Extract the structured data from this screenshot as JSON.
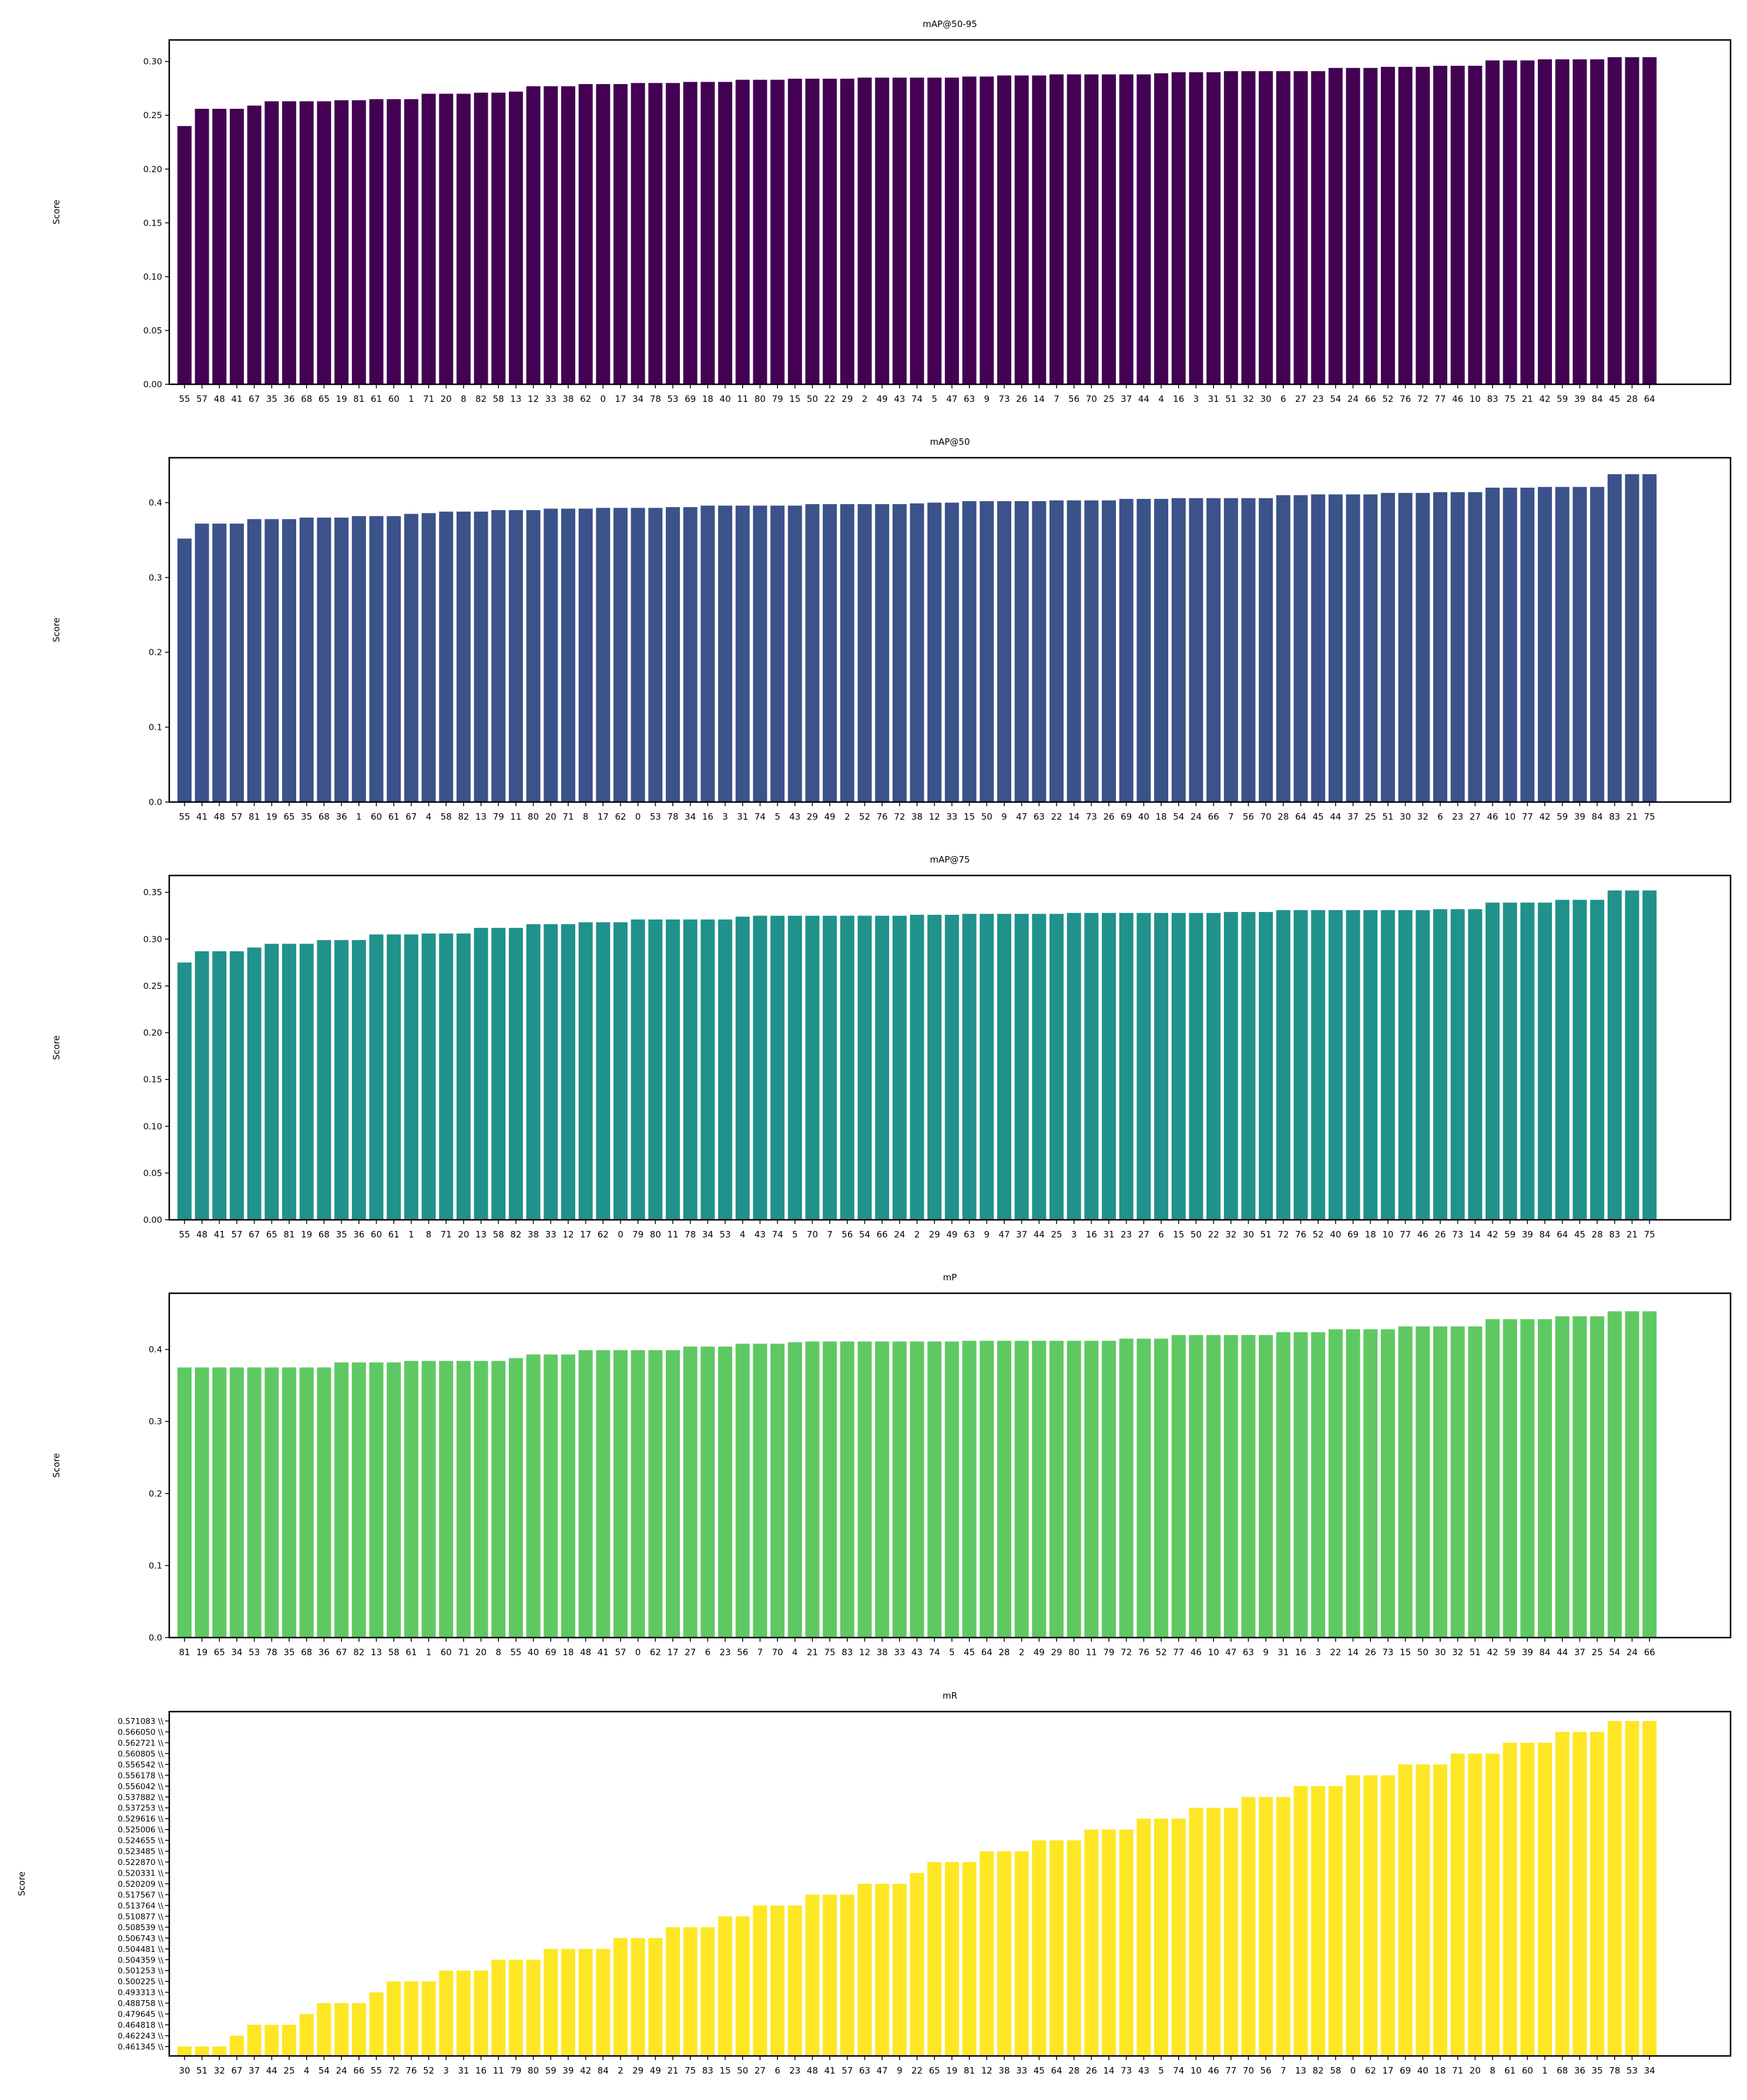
{
  "chart_data": [
    {
      "type": "bar",
      "title": "mAP@50-95",
      "xlabel": "",
      "ylabel": "Score",
      "color": "#440154",
      "ylim": [
        0,
        0.32
      ],
      "yticks": [
        0.0,
        0.05,
        0.1,
        0.15,
        0.2,
        0.25,
        0.3
      ],
      "tick_decimals": 2,
      "categories": [
        "55",
        "57",
        "48",
        "41",
        "67",
        "35",
        "36",
        "68",
        "65",
        "19",
        "81",
        "61",
        "60",
        "1",
        "71",
        "20",
        "8",
        "82",
        "58",
        "13",
        "12",
        "33",
        "38",
        "62",
        "0",
        "17",
        "34",
        "78",
        "53",
        "69",
        "18",
        "40",
        "11",
        "80",
        "79",
        "15",
        "50",
        "22",
        "29",
        "2",
        "49",
        "43",
        "74",
        "5",
        "47",
        "63",
        "9",
        "73",
        "26",
        "14",
        "7",
        "56",
        "70",
        "25",
        "37",
        "44",
        "4",
        "16",
        "3",
        "31",
        "51",
        "32",
        "30",
        "6",
        "27",
        "23",
        "54",
        "24",
        "66",
        "52",
        "76",
        "72",
        "77",
        "46",
        "10",
        "83",
        "75",
        "21",
        "42",
        "59",
        "39",
        "84",
        "45",
        "28",
        "64"
      ],
      "values": [
        0.24,
        0.256,
        0.256,
        0.256,
        0.259,
        0.263,
        0.263,
        0.263,
        0.263,
        0.264,
        0.264,
        0.265,
        0.265,
        0.265,
        0.27,
        0.27,
        0.27,
        0.271,
        0.271,
        0.272,
        0.277,
        0.277,
        0.277,
        0.279,
        0.279,
        0.279,
        0.28,
        0.28,
        0.28,
        0.281,
        0.281,
        0.281,
        0.283,
        0.283,
        0.283,
        0.284,
        0.284,
        0.284,
        0.284,
        0.285,
        0.285,
        0.285,
        0.285,
        0.285,
        0.285,
        0.286,
        0.286,
        0.287,
        0.287,
        0.287,
        0.288,
        0.288,
        0.288,
        0.288,
        0.288,
        0.288,
        0.289,
        0.29,
        0.29,
        0.29,
        0.291,
        0.291,
        0.291,
        0.291,
        0.291,
        0.291,
        0.294,
        0.294,
        0.294,
        0.295,
        0.295,
        0.295,
        0.296,
        0.296,
        0.296,
        0.301,
        0.301,
        0.301,
        0.302,
        0.302,
        0.302,
        0.302,
        0.304,
        0.304,
        0.304
      ]
    },
    {
      "type": "bar",
      "title": "mAP@50",
      "xlabel": "",
      "ylabel": "Score",
      "color": "#3b528b",
      "ylim": [
        0,
        0.46
      ],
      "yticks": [
        0.0,
        0.1,
        0.2,
        0.3,
        0.4
      ],
      "tick_decimals": 1,
      "categories": [
        "55",
        "41",
        "48",
        "57",
        "81",
        "19",
        "65",
        "35",
        "68",
        "36",
        "1",
        "60",
        "61",
        "67",
        "4",
        "58",
        "82",
        "13",
        "79",
        "11",
        "80",
        "20",
        "71",
        "8",
        "17",
        "62",
        "0",
        "53",
        "78",
        "34",
        "16",
        "3",
        "31",
        "74",
        "5",
        "43",
        "29",
        "49",
        "2",
        "52",
        "76",
        "72",
        "38",
        "12",
        "33",
        "15",
        "50",
        "9",
        "47",
        "63",
        "22",
        "14",
        "73",
        "26",
        "69",
        "40",
        "18",
        "54",
        "24",
        "66",
        "7",
        "56",
        "70",
        "28",
        "64",
        "45",
        "44",
        "37",
        "25",
        "51",
        "30",
        "32",
        "6",
        "23",
        "27",
        "46",
        "10",
        "77",
        "42",
        "59",
        "39",
        "84",
        "83",
        "21",
        "75"
      ],
      "values": [
        0.352,
        0.372,
        0.372,
        0.372,
        0.378,
        0.378,
        0.378,
        0.38,
        0.38,
        0.38,
        0.382,
        0.382,
        0.382,
        0.385,
        0.386,
        0.388,
        0.388,
        0.388,
        0.39,
        0.39,
        0.39,
        0.392,
        0.392,
        0.392,
        0.393,
        0.393,
        0.393,
        0.393,
        0.394,
        0.394,
        0.396,
        0.396,
        0.396,
        0.396,
        0.396,
        0.396,
        0.398,
        0.398,
        0.398,
        0.398,
        0.398,
        0.398,
        0.399,
        0.4,
        0.4,
        0.402,
        0.402,
        0.402,
        0.402,
        0.402,
        0.403,
        0.403,
        0.403,
        0.403,
        0.405,
        0.405,
        0.405,
        0.406,
        0.406,
        0.406,
        0.406,
        0.406,
        0.406,
        0.41,
        0.41,
        0.411,
        0.411,
        0.411,
        0.411,
        0.413,
        0.413,
        0.413,
        0.414,
        0.414,
        0.414,
        0.42,
        0.42,
        0.42,
        0.421,
        0.421,
        0.421,
        0.421,
        0.438,
        0.438,
        0.438
      ]
    },
    {
      "type": "bar",
      "title": "mAP@75",
      "xlabel": "",
      "ylabel": "Score",
      "color": "#21918c",
      "ylim": [
        0,
        0.368
      ],
      "yticks": [
        0.0,
        0.05,
        0.1,
        0.15,
        0.2,
        0.25,
        0.3,
        0.35
      ],
      "tick_decimals": 2,
      "categories": [
        "55",
        "48",
        "41",
        "57",
        "67",
        "65",
        "81",
        "19",
        "68",
        "35",
        "36",
        "60",
        "61",
        "1",
        "8",
        "71",
        "20",
        "13",
        "58",
        "82",
        "38",
        "33",
        "12",
        "17",
        "62",
        "0",
        "79",
        "80",
        "11",
        "78",
        "34",
        "53",
        "4",
        "43",
        "74",
        "5",
        "70",
        "7",
        "56",
        "54",
        "66",
        "24",
        "2",
        "29",
        "49",
        "63",
        "9",
        "47",
        "37",
        "44",
        "25",
        "3",
        "16",
        "31",
        "23",
        "27",
        "6",
        "15",
        "50",
        "22",
        "32",
        "30",
        "51",
        "72",
        "76",
        "52",
        "40",
        "69",
        "18",
        "10",
        "77",
        "46",
        "26",
        "73",
        "14",
        "42",
        "59",
        "39",
        "84",
        "64",
        "45",
        "28",
        "83",
        "21",
        "75"
      ],
      "values": [
        0.275,
        0.287,
        0.287,
        0.287,
        0.291,
        0.295,
        0.295,
        0.295,
        0.299,
        0.299,
        0.299,
        0.305,
        0.305,
        0.305,
        0.306,
        0.306,
        0.306,
        0.312,
        0.312,
        0.312,
        0.316,
        0.316,
        0.316,
        0.318,
        0.318,
        0.318,
        0.321,
        0.321,
        0.321,
        0.321,
        0.321,
        0.321,
        0.324,
        0.325,
        0.325,
        0.325,
        0.325,
        0.325,
        0.325,
        0.325,
        0.325,
        0.325,
        0.326,
        0.326,
        0.326,
        0.327,
        0.327,
        0.327,
        0.327,
        0.327,
        0.327,
        0.328,
        0.328,
        0.328,
        0.328,
        0.328,
        0.328,
        0.328,
        0.328,
        0.328,
        0.329,
        0.329,
        0.329,
        0.331,
        0.331,
        0.331,
        0.331,
        0.331,
        0.331,
        0.331,
        0.331,
        0.331,
        0.332,
        0.332,
        0.332,
        0.339,
        0.339,
        0.339,
        0.339,
        0.342,
        0.342,
        0.342,
        0.352,
        0.352,
        0.352
      ]
    },
    {
      "type": "bar",
      "title": "mP",
      "xlabel": "",
      "ylabel": "Score",
      "color": "#5ec962",
      "ylim": [
        0,
        0.478
      ],
      "yticks": [
        0.0,
        0.1,
        0.2,
        0.3,
        0.4
      ],
      "tick_decimals": 1,
      "categories": [
        "81",
        "19",
        "65",
        "34",
        "53",
        "78",
        "35",
        "68",
        "36",
        "67",
        "82",
        "13",
        "58",
        "61",
        "1",
        "60",
        "71",
        "20",
        "8",
        "55",
        "40",
        "69",
        "18",
        "48",
        "41",
        "57",
        "0",
        "62",
        "17",
        "27",
        "6",
        "23",
        "56",
        "7",
        "70",
        "4",
        "21",
        "75",
        "83",
        "12",
        "38",
        "33",
        "43",
        "74",
        "5",
        "45",
        "64",
        "28",
        "2",
        "49",
        "29",
        "80",
        "11",
        "79",
        "72",
        "76",
        "52",
        "77",
        "46",
        "10",
        "47",
        "63",
        "9",
        "31",
        "16",
        "3",
        "22",
        "14",
        "26",
        "73",
        "15",
        "50",
        "30",
        "32",
        "51",
        "42",
        "59",
        "39",
        "84",
        "44",
        "37",
        "25",
        "54",
        "24",
        "66"
      ],
      "values": [
        0.375,
        0.375,
        0.375,
        0.375,
        0.375,
        0.375,
        0.375,
        0.375,
        0.375,
        0.382,
        0.382,
        0.382,
        0.382,
        0.384,
        0.384,
        0.384,
        0.384,
        0.384,
        0.384,
        0.388,
        0.393,
        0.393,
        0.393,
        0.399,
        0.399,
        0.399,
        0.399,
        0.399,
        0.399,
        0.404,
        0.404,
        0.404,
        0.408,
        0.408,
        0.408,
        0.41,
        0.411,
        0.411,
        0.411,
        0.411,
        0.411,
        0.411,
        0.411,
        0.411,
        0.411,
        0.412,
        0.412,
        0.412,
        0.412,
        0.412,
        0.412,
        0.412,
        0.412,
        0.412,
        0.415,
        0.415,
        0.415,
        0.42,
        0.42,
        0.42,
        0.42,
        0.42,
        0.42,
        0.424,
        0.424,
        0.424,
        0.428,
        0.428,
        0.428,
        0.428,
        0.432,
        0.432,
        0.432,
        0.432,
        0.432,
        0.442,
        0.442,
        0.442,
        0.442,
        0.446,
        0.446,
        0.446,
        0.453,
        0.453,
        0.453
      ]
    },
    {
      "type": "bar",
      "title": "mR",
      "xlabel": "",
      "ylabel": "Score",
      "color": "#fde725",
      "y_axis": "categorical",
      "ytick_labels": [
        "0.461345 \\\\",
        "0.462243 \\\\",
        "0.464818 \\\\",
        "0.479645 \\\\",
        "0.488758 \\\\",
        "0.493313 \\\\",
        "0.500225 \\\\",
        "0.501253 \\\\",
        "0.504359 \\\\",
        "0.504481 \\\\",
        "0.506743 \\\\",
        "0.508539 \\\\",
        "0.510877 \\\\",
        "0.513764 \\\\",
        "0.517567 \\\\",
        "0.520209 \\\\",
        "0.520331 \\\\",
        "0.522870 \\\\",
        "0.523485 \\\\",
        "0.524655 \\\\",
        "0.525006 \\\\",
        "0.529616 \\\\",
        "0.537253 \\\\",
        "0.537882 \\\\",
        "0.556042 \\\\",
        "0.556178 \\\\",
        "0.556542 \\\\",
        "0.560805 \\\\",
        "0.562721 \\\\",
        "0.566050 \\\\",
        "0.571083 \\\\"
      ],
      "categories": [
        "30",
        "51",
        "32",
        "67",
        "37",
        "44",
        "25",
        "4",
        "54",
        "24",
        "66",
        "55",
        "72",
        "76",
        "52",
        "3",
        "31",
        "16",
        "11",
        "79",
        "80",
        "59",
        "39",
        "42",
        "84",
        "2",
        "29",
        "49",
        "21",
        "75",
        "83",
        "15",
        "50",
        "27",
        "6",
        "23",
        "48",
        "41",
        "57",
        "63",
        "47",
        "9",
        "22",
        "65",
        "19",
        "81",
        "12",
        "38",
        "33",
        "45",
        "64",
        "28",
        "26",
        "14",
        "73",
        "43",
        "5",
        "74",
        "10",
        "46",
        "77",
        "70",
        "56",
        "7",
        "13",
        "82",
        "58",
        "0",
        "62",
        "17",
        "69",
        "40",
        "18",
        "71",
        "20",
        "8",
        "61",
        "60",
        "1",
        "68",
        "36",
        "35",
        "78",
        "53",
        "34"
      ],
      "values": [
        0.461345,
        0.461345,
        0.461345,
        0.462243,
        0.464818,
        0.464818,
        0.464818,
        0.479645,
        0.488758,
        0.488758,
        0.488758,
        0.493313,
        0.500225,
        0.500225,
        0.500225,
        0.501253,
        0.501253,
        0.501253,
        0.504359,
        0.504359,
        0.504359,
        0.504481,
        0.504481,
        0.504481,
        0.504481,
        0.506743,
        0.506743,
        0.506743,
        0.508539,
        0.508539,
        0.508539,
        0.510877,
        0.510877,
        0.513764,
        0.513764,
        0.513764,
        0.517567,
        0.517567,
        0.517567,
        0.520209,
        0.520209,
        0.520209,
        0.520331,
        0.52287,
        0.52287,
        0.52287,
        0.523485,
        0.523485,
        0.523485,
        0.524655,
        0.524655,
        0.524655,
        0.525006,
        0.525006,
        0.525006,
        0.529616,
        0.529616,
        0.529616,
        0.537253,
        0.537253,
        0.537253,
        0.537882,
        0.537882,
        0.537882,
        0.556042,
        0.556042,
        0.556042,
        0.556178,
        0.556178,
        0.556178,
        0.556542,
        0.556542,
        0.556542,
        0.560805,
        0.560805,
        0.560805,
        0.562721,
        0.562721,
        0.562721,
        0.56605,
        0.56605,
        0.56605,
        0.571083,
        0.571083,
        0.571083
      ]
    }
  ]
}
